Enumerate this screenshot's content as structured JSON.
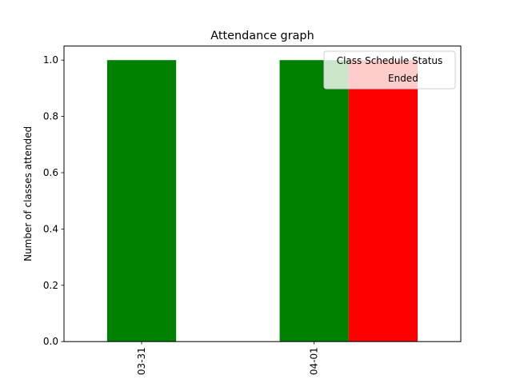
{
  "chart_data": {
    "type": "bar",
    "title": "Attendance graph",
    "xlabel": "",
    "ylabel": "Number of classes attended",
    "ylim": [
      0,
      1.05
    ],
    "yticks": [
      "0.0",
      "0.2",
      "0.4",
      "0.6",
      "0.8",
      "1.0"
    ],
    "grid": false,
    "categories": [
      "03-31",
      "04-01"
    ],
    "x_tick_rotation": "vertical",
    "bars": [
      {
        "category": "03-31",
        "slot": 0,
        "value": 1.0,
        "color": "#008000"
      },
      {
        "category": "04-01",
        "slot": 0,
        "value": 1.0,
        "color": "#008000"
      },
      {
        "category": "04-01",
        "slot": 1,
        "value": 1.0,
        "color": "#ff0000"
      }
    ],
    "legend": {
      "title": "Class Schedule Status",
      "placement": "top-right",
      "entries": [
        {
          "label": "Ended",
          "color": ""
        }
      ]
    }
  }
}
